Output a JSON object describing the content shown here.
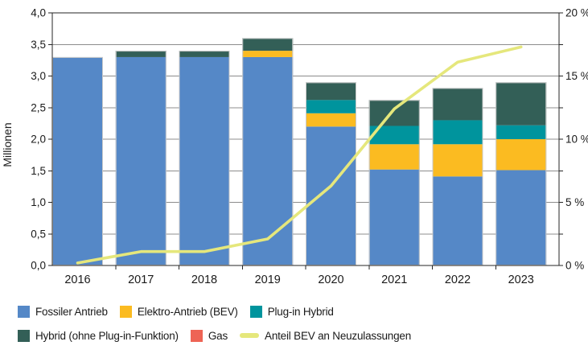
{
  "chart_data": {
    "type": "stacked-bar-line",
    "title": "",
    "categories": [
      "2016",
      "2017",
      "2018",
      "2019",
      "2020",
      "2021",
      "2022",
      "2023"
    ],
    "unit_left": "Millionen",
    "unit_right": "Prozent",
    "series": [
      {
        "name": "Fossiler Antrieb",
        "color": "#5588C7",
        "swatch": "square",
        "values": [
          3.3,
          3.3,
          3.3,
          3.3,
          2.2,
          1.52,
          1.41,
          1.51
        ]
      },
      {
        "name": "Elektro-Antrieb (BEV)",
        "color": "#FBBB21",
        "swatch": "square",
        "values": [
          0,
          0,
          0,
          0.1,
          0.21,
          0.4,
          0.51,
          0.49
        ]
      },
      {
        "name": "Plug-in Hybrid",
        "color": "#00949D",
        "swatch": "square",
        "values": [
          0,
          0,
          0,
          0,
          0.21,
          0.29,
          0.38,
          0.22
        ]
      },
      {
        "name": "Hybrid (ohne Plug-in-Funktion)",
        "color": "#335F57",
        "swatch": "square",
        "values": [
          0,
          0.1,
          0.1,
          0.2,
          0.28,
          0.41,
          0.51,
          0.68
        ]
      },
      {
        "name": "Gas",
        "color": "#EE6455",
        "swatch": "square",
        "values": [
          0,
          0,
          0,
          0,
          0,
          0,
          0,
          0
        ]
      }
    ],
    "line_series": {
      "name": "Anteil BEV an Neuzulassungen",
      "color": "#E5E77C",
      "axis": "right",
      "values_percent": [
        0.2,
        1.1,
        1.1,
        2.1,
        6.3,
        12.4,
        16.1,
        17.3
      ]
    },
    "left_axis": {
      "label": "Millionen",
      "min": 0,
      "max": 4,
      "tick_step": 0.5,
      "tick_labels": [
        "0,0",
        "0,5",
        "1,0",
        "1,5",
        "2,0",
        "2,5",
        "3,0",
        "3,5",
        "4,0"
      ]
    },
    "right_axis": {
      "min": 0,
      "max": 20,
      "tick_step": 2.5,
      "label_step": 5,
      "tick_labels": [
        "0 %",
        "5 %",
        "10 %",
        "15 %",
        "20 %"
      ]
    },
    "grid": true,
    "legend_position": "bottom",
    "style_colors": {
      "grid": "#8C8C8C",
      "frame": "#262626",
      "bar_outline": "#C9C9C9",
      "text": "#1a1a1a",
      "background": "#ffffff"
    }
  }
}
